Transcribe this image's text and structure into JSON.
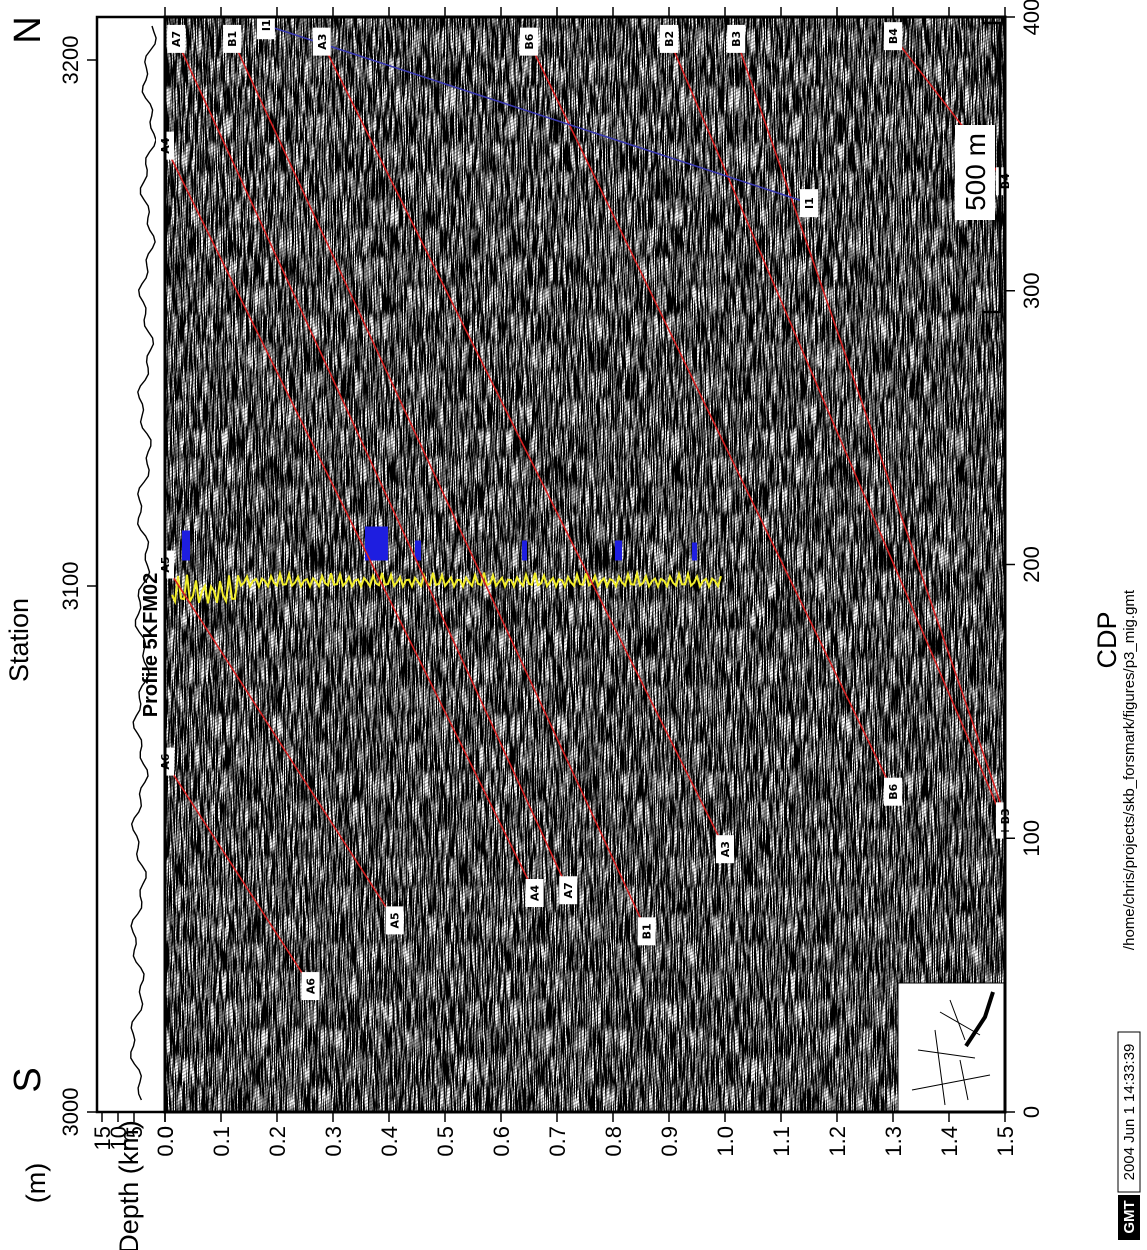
{
  "chart_data": {
    "type": "line",
    "title": "",
    "edge_labels": {
      "left": "S",
      "right": "N"
    },
    "station_axis": {
      "label": "Station",
      "range": [
        3000,
        3200
      ],
      "ticks": [
        "3000",
        "3100",
        "3200"
      ]
    },
    "cdp_axis": {
      "label": "CDP",
      "range": [
        0,
        400
      ],
      "ticks": [
        "0",
        "100",
        "200",
        "300",
        "400"
      ]
    },
    "depth_axis": {
      "label": "Depth (km)",
      "range": [
        0.0,
        1.5
      ],
      "inverted": true,
      "ticks": [
        "0.0",
        "0.1",
        "0.2",
        "0.3",
        "0.4",
        "0.5",
        "0.6",
        "0.7",
        "0.8",
        "0.9",
        "1.0",
        "1.1",
        "1.2",
        "1.3",
        "1.4",
        "1.5"
      ]
    },
    "elevation_axis": {
      "label": "(m)",
      "ticks": [
        "15",
        "10",
        "5",
        "0"
      ]
    },
    "well_label": "Profile 5KFM02",
    "scale_bar_label": "500 m",
    "colors": {
      "reflector": "#d62020",
      "profile_line": "#3a3ab0",
      "well_log": "#f2ee2a",
      "well_blocks": "#1e1ee0"
    },
    "series": [
      {
        "name": "A6",
        "x": [
          46,
          128
        ],
        "y": [
          0.26,
          0.0
        ]
      },
      {
        "name": "A5",
        "x": [
          70,
          200
        ],
        "y": [
          0.41,
          0.0
        ]
      },
      {
        "name": "A4",
        "x": [
          80,
          353
        ],
        "y": [
          0.66,
          0.0
        ]
      },
      {
        "name": "A7",
        "x": [
          81,
          392
        ],
        "y": [
          0.72,
          0.02
        ]
      },
      {
        "name": "B1",
        "x": [
          66,
          392
        ],
        "y": [
          0.86,
          0.12
        ]
      },
      {
        "name": "A3",
        "x": [
          96,
          391
        ],
        "y": [
          1.0,
          0.28
        ]
      },
      {
        "name": "B6",
        "x": [
          117,
          391
        ],
        "y": [
          1.3,
          0.65
        ]
      },
      {
        "name": "B2",
        "x": [
          105,
          392
        ],
        "y": [
          1.5,
          0.9
        ]
      },
      {
        "name": "B3",
        "x": [
          108,
          392
        ],
        "y": [
          1.5,
          1.02
        ]
      },
      {
        "name": "B4",
        "x": [
          340,
          393
        ],
        "y": [
          1.5,
          1.3
        ]
      },
      {
        "name": "I1",
        "x": [
          332,
          397
        ],
        "y": [
          1.15,
          0.18
        ]
      }
    ]
  },
  "footer": {
    "gmt_logo": "GMT",
    "timestamp": "2004 Jun 1 14:33:39",
    "path": "/home/chris/projects/skb_forsmark/figures/p3_mig.gmt"
  }
}
